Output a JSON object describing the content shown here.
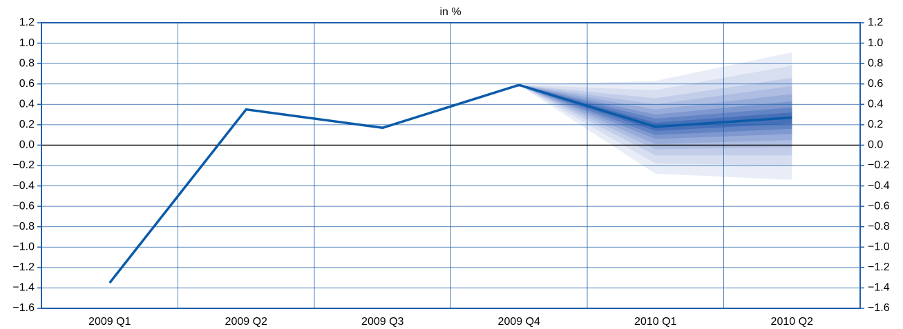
{
  "chart_data": {
    "type": "fan",
    "title": "in %",
    "categories": [
      "2009 Q1",
      "2009 Q2",
      "2009 Q3",
      "2009 Q4",
      "2010 Q1",
      "2010 Q2"
    ],
    "series": [
      {
        "color": "#0a5ba8",
        "values": [
          -1.35,
          0.35,
          0.17,
          0.59,
          0.18,
          0.27
        ]
      }
    ],
    "fan": [
      {
        "color": "#e9edf7",
        "upper": [
          null,
          null,
          null,
          0.59,
          0.63,
          0.91
        ],
        "lower": [
          null,
          null,
          null,
          0.59,
          -0.28,
          -0.34
        ]
      },
      {
        "color": "#d6def0",
        "upper": [
          null,
          null,
          null,
          0.59,
          0.54,
          0.78
        ],
        "lower": [
          null,
          null,
          null,
          0.59,
          -0.18,
          -0.2
        ]
      },
      {
        "color": "#c2cee9",
        "upper": [
          null,
          null,
          null,
          0.59,
          0.46,
          0.66
        ],
        "lower": [
          null,
          null,
          null,
          0.59,
          -0.1,
          -0.1
        ]
      },
      {
        "color": "#aebde1",
        "upper": [
          null,
          null,
          null,
          0.59,
          0.4,
          0.58
        ],
        "lower": [
          null,
          null,
          null,
          0.59,
          -0.04,
          -0.02
        ]
      },
      {
        "color": "#98acd9",
        "upper": [
          null,
          null,
          null,
          0.59,
          0.35,
          0.5
        ],
        "lower": [
          null,
          null,
          null,
          0.59,
          0.01,
          0.05
        ]
      },
      {
        "color": "#7f98cf",
        "upper": [
          null,
          null,
          null,
          0.59,
          0.3,
          0.43
        ],
        "lower": [
          null,
          null,
          null,
          0.59,
          0.06,
          0.11
        ]
      },
      {
        "color": "#6384c4",
        "upper": [
          null,
          null,
          null,
          0.59,
          0.26,
          0.37
        ],
        "lower": [
          null,
          null,
          null,
          0.59,
          0.1,
          0.16
        ]
      },
      {
        "color": "#4670b8",
        "upper": [
          null,
          null,
          null,
          0.59,
          0.22,
          0.32
        ],
        "lower": [
          null,
          null,
          null,
          0.59,
          0.14,
          0.21
        ]
      }
    ],
    "ylim": [
      -1.6,
      1.2
    ],
    "yticks": [
      {
        "value": -1.6,
        "label": "−1.6"
      },
      {
        "value": -1.4,
        "label": "−1.4"
      },
      {
        "value": -1.2,
        "label": "−1.2"
      },
      {
        "value": -1.0,
        "label": "−1.0"
      },
      {
        "value": -0.8,
        "label": "−0.8"
      },
      {
        "value": -0.6,
        "label": "−0.6"
      },
      {
        "value": -0.4,
        "label": "−0.4"
      },
      {
        "value": -0.2,
        "label": "−0.2"
      },
      {
        "value": 0,
        "label": "0.0"
      },
      0.2,
      0.4,
      0.6,
      0.8,
      {
        "value": 1.0,
        "label": "1.0"
      },
      1.2
    ],
    "grid": true,
    "axis_color": "#1f5fa8"
  }
}
